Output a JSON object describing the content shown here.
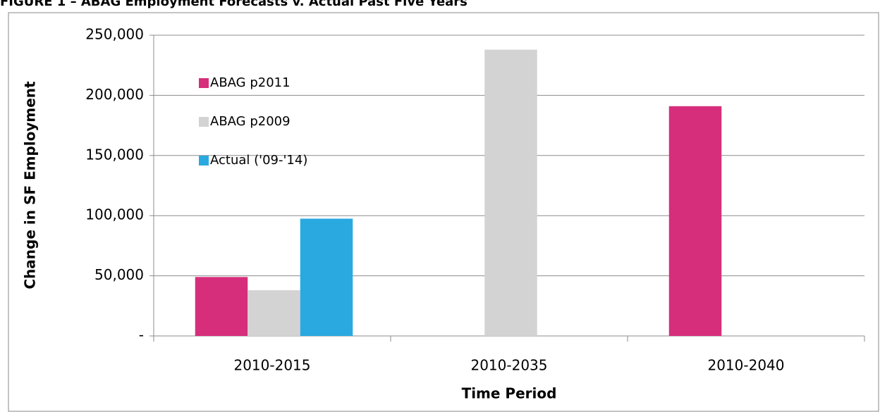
{
  "chart_data": {
    "type": "bar",
    "title": "FIGURE 1 – ABAG Employment Forecasts v. Actual Past Five Years",
    "x_label": "Time Period",
    "y_label": "Change in SF Employment",
    "categories": [
      "2010-2015",
      "2010-2035",
      "2010-2040"
    ],
    "series": [
      {
        "name": "ABAG p2011",
        "color": "#d62e7b",
        "values": [
          49000,
          null,
          191000
        ]
      },
      {
        "name": "ABAG p2009",
        "color": "#d3d3d3",
        "values": [
          38000,
          238000,
          null
        ]
      },
      {
        "name": "Actual ('09-'14)",
        "color": "#29a9e0",
        "values": [
          97500,
          null,
          null
        ]
      }
    ],
    "ylim": [
      0,
      250000
    ],
    "yticks": [
      {
        "value": 0,
        "label": "-"
      },
      {
        "value": 50000,
        "label": "50,000"
      },
      {
        "value": 100000,
        "label": "100,000"
      },
      {
        "value": 150000,
        "label": "150,000"
      },
      {
        "value": 200000,
        "label": "200,000"
      },
      {
        "value": 250000,
        "label": "250,000"
      }
    ],
    "grid": true,
    "legend": "upper left"
  }
}
